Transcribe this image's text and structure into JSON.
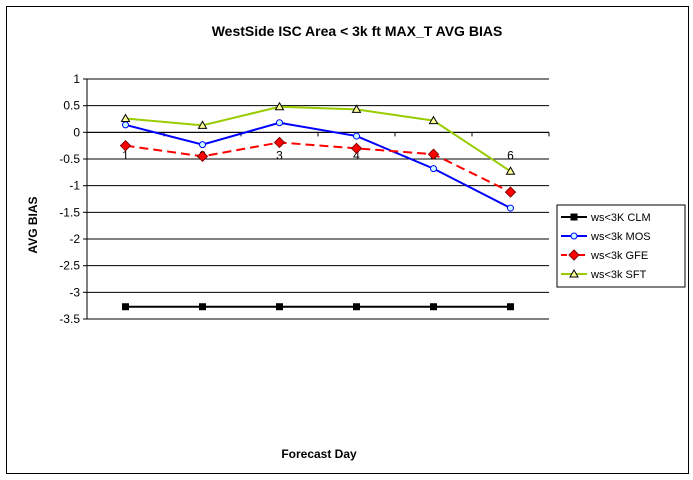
{
  "chart_data": {
    "type": "line",
    "title": "WestSide ISC Area < 3k ft MAX_T AVG BIAS",
    "xlabel": "Forecast Day",
    "ylabel": "AVG BIAS",
    "categories": [
      "1",
      "2",
      "3",
      "4",
      "5",
      "6"
    ],
    "ylim": [
      -3.5,
      1
    ],
    "yticks": [
      "1",
      "0.5",
      "0",
      "-0.5",
      "-1",
      "-1.5",
      "-2",
      "-2.5",
      "-3",
      "-3.5"
    ],
    "grid": true,
    "legend": "right",
    "series": [
      {
        "name": "ws<3K CLM",
        "color": "#000000",
        "marker": "square",
        "dash": false,
        "values": [
          -3.27,
          -3.27,
          -3.27,
          -3.27,
          -3.27,
          -3.27
        ]
      },
      {
        "name": "ws<3k MOS",
        "color": "#0000ff",
        "marker": "circle",
        "dash": false,
        "values": [
          0.14,
          -0.23,
          0.18,
          -0.07,
          -0.68,
          -1.42
        ]
      },
      {
        "name": "ws<3k GFE",
        "color": "#ff0000",
        "marker": "diamond",
        "dash": true,
        "values": [
          -0.25,
          -0.45,
          -0.19,
          -0.3,
          -0.41,
          -1.12
        ]
      },
      {
        "name": "ws<3k SFT",
        "color": "#99cc00",
        "marker": "triangle",
        "dash": false,
        "values": [
          0.26,
          0.13,
          0.48,
          0.43,
          0.22,
          -0.73
        ]
      }
    ]
  }
}
